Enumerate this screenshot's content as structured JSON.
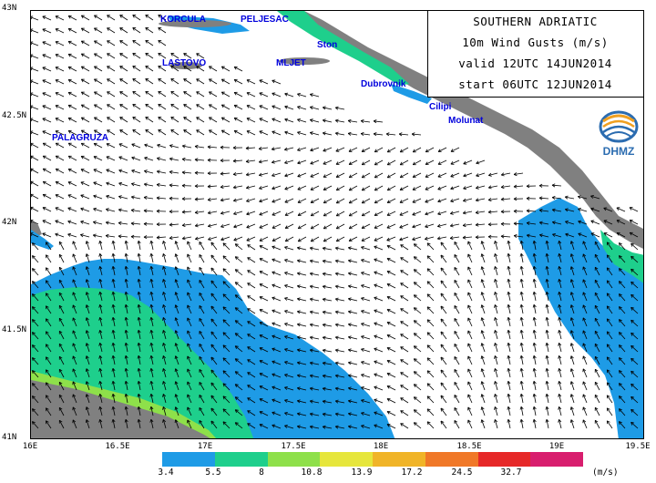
{
  "info": {
    "line1": "SOUTHERN ADRIATIC",
    "line2": "10m Wind Gusts (m/s)",
    "line3": "valid 12UTC 14JUN2014",
    "line4": "start 06UTC 12JUN2014"
  },
  "logo": {
    "text": "DHMZ"
  },
  "axes": {
    "lat_labels": [
      "43N",
      "42.5N",
      "42N",
      "41.5N",
      "41N"
    ],
    "lon_labels": [
      "16E",
      "16.5E",
      "17E",
      "17.5E",
      "18E",
      "18.5E",
      "19E",
      "19.5E"
    ]
  },
  "places": {
    "korcula": "KORCULA",
    "peljesac": "PELJESAC",
    "ston": "Ston",
    "lastovo": "LASTOVO",
    "mljet": "MLJET",
    "dubrovnik": "Dubrovnik",
    "cilipi": "Cilipi",
    "molunat": "Molunat",
    "palagruza": "PALAGRUZA"
  },
  "legend": {
    "labels": [
      "3.4",
      "5.5",
      "8",
      "10.8",
      "13.9",
      "17.2",
      "24.5",
      "32.7"
    ],
    "unit": "(m/s)",
    "colors": [
      "#1e9be6",
      "#1ecf8c",
      "#8ee04a",
      "#e6e63c",
      "#f0b428",
      "#f07828",
      "#e62828",
      "#d81e6e"
    ]
  },
  "colors": {
    "blue_zone": "#1e9be6",
    "green_zone": "#1ecf8c",
    "light_green_zone": "#8ee04a",
    "land": "#808080",
    "label_color": "#0000dd",
    "logo_blue": "#2b6cb0",
    "logo_orange": "#f0a020"
  }
}
